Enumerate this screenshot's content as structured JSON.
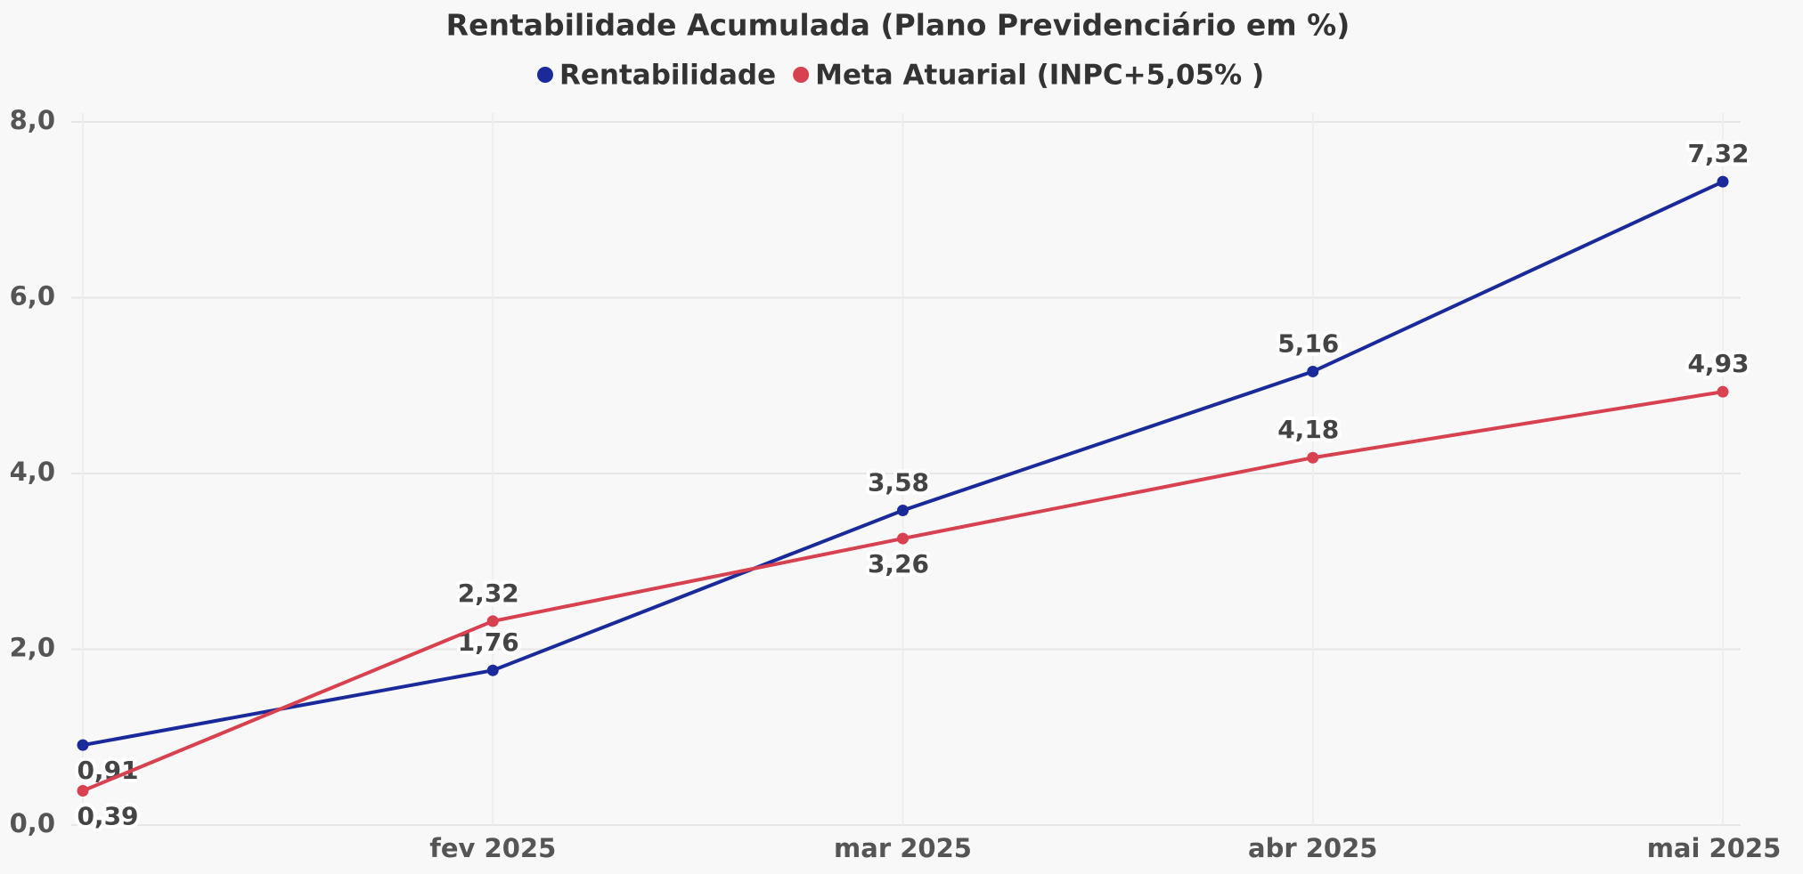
{
  "chart_data": {
    "type": "line",
    "title": "Rentabilidade Acumulada (Plano Previdenciário em %)",
    "categories": [
      null,
      "fev 2025",
      "mar 2025",
      "abr 2025",
      "mai 2025"
    ],
    "series": [
      {
        "name": "Rentabilidade",
        "color": "#1b2a9a",
        "values": [
          0.91,
          1.76,
          3.58,
          5.16,
          7.32
        ],
        "value_labels": [
          "0,91",
          "1,76",
          "3,58",
          "5,16",
          "7,32"
        ]
      },
      {
        "name": "Meta Atuarial (INPC+5,05% )",
        "color": "#d8414f",
        "values": [
          0.39,
          2.32,
          3.26,
          4.18,
          4.93
        ],
        "value_labels": [
          "0,39",
          "2,32",
          "3,26",
          "4,18",
          "4,93"
        ]
      }
    ],
    "ylim": [
      0,
      8
    ],
    "yticks": [
      {
        "value": 0,
        "label": "0,0"
      },
      {
        "value": 2,
        "label": "2,0"
      },
      {
        "value": 4,
        "label": "4,0"
      },
      {
        "value": 6,
        "label": "6,0"
      },
      {
        "value": 8,
        "label": "8,0"
      }
    ],
    "grid": true
  }
}
